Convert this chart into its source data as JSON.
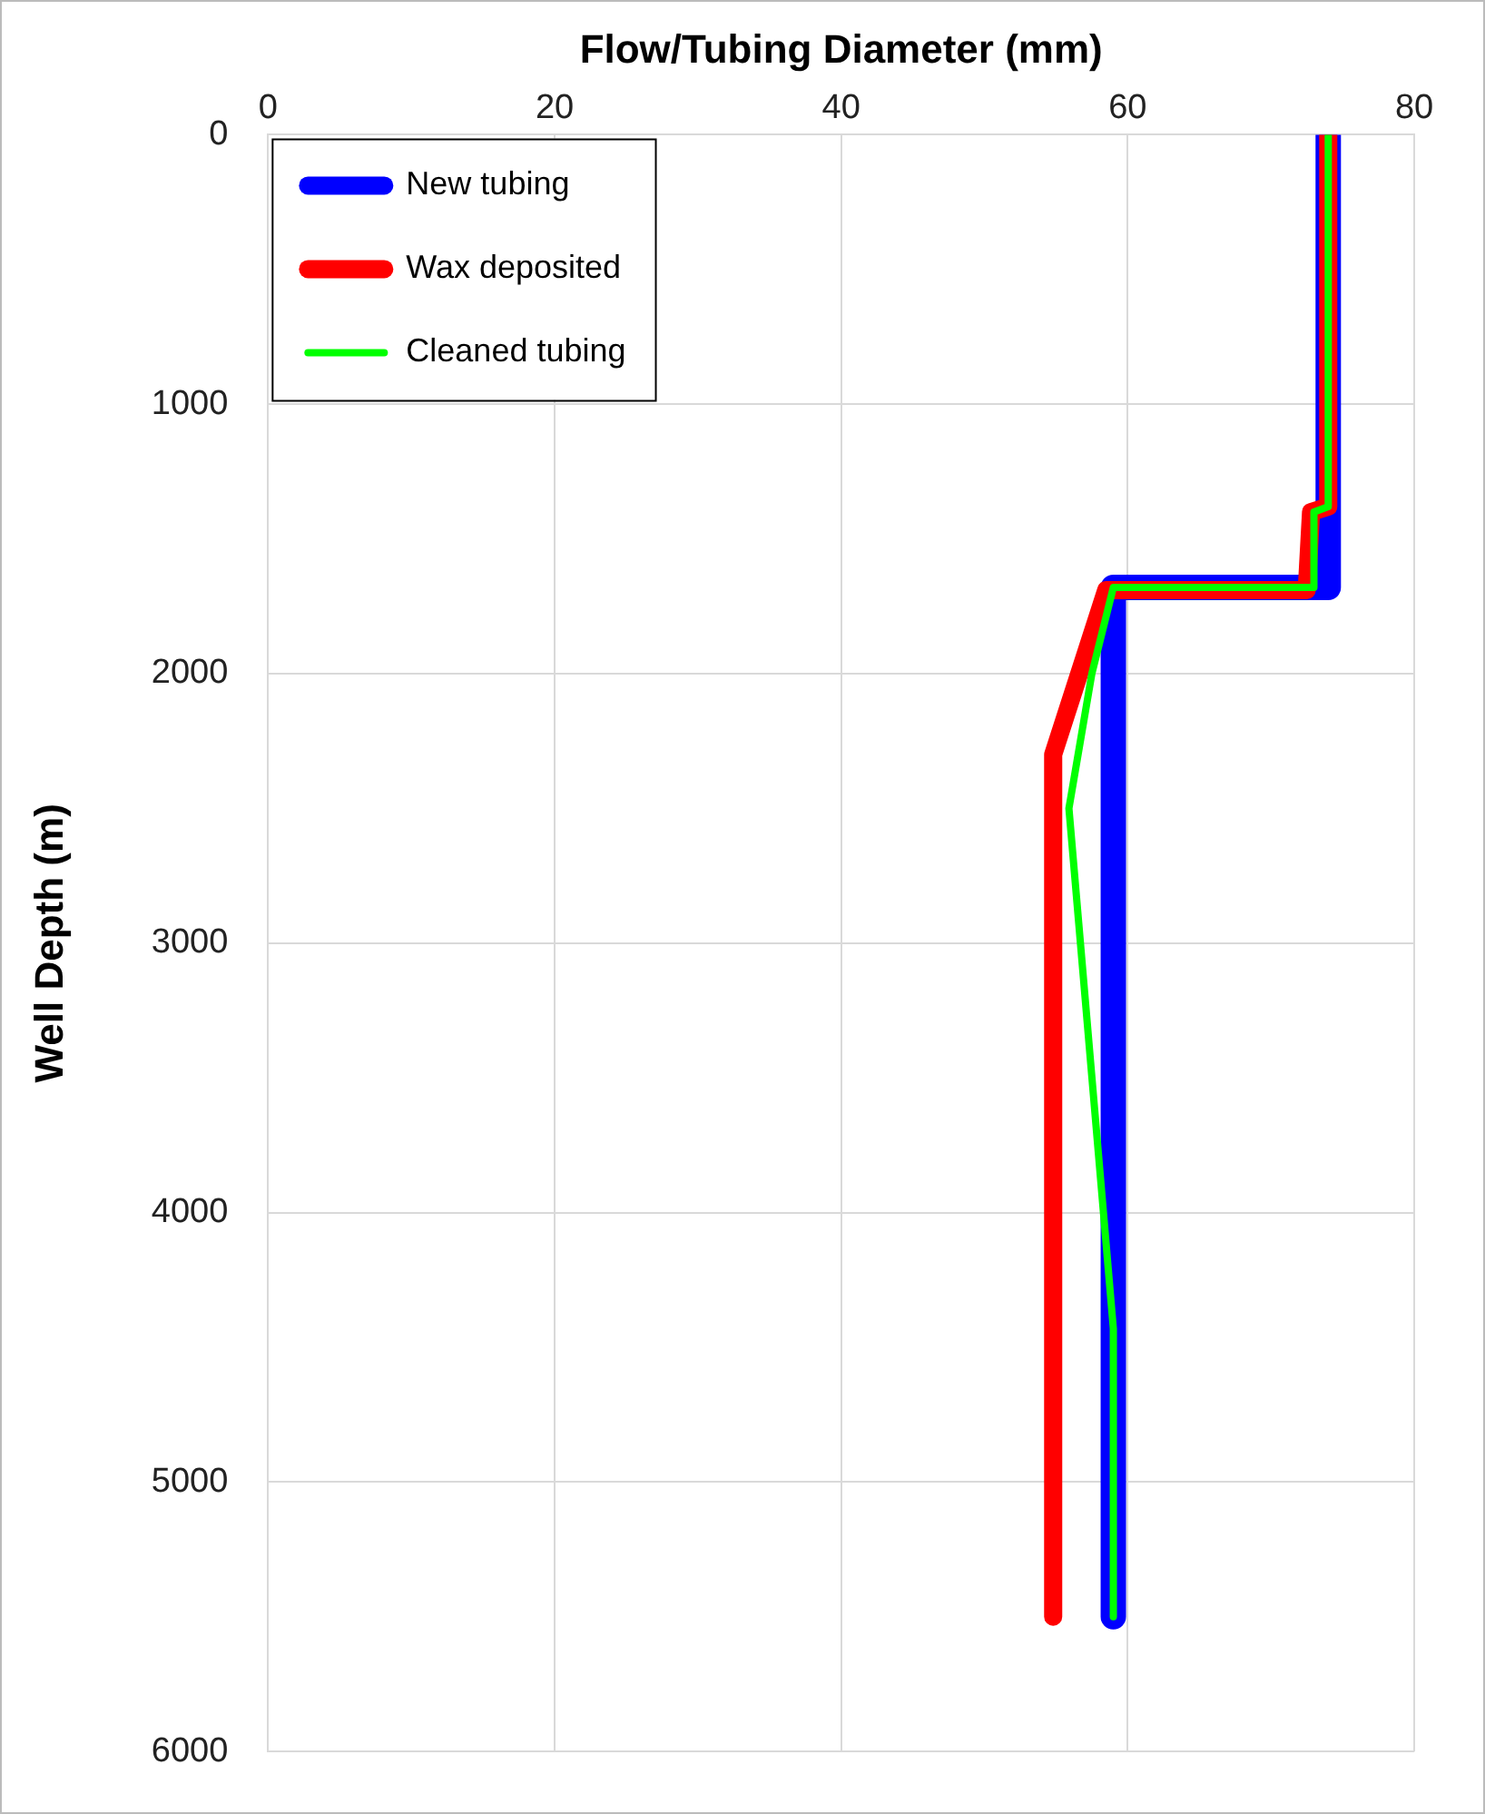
{
  "chart_data": {
    "type": "line",
    "xlabel": "Flow/Tubing Diameter (mm)",
    "ylabel": "Well Depth (m)",
    "xlim": [
      0,
      80
    ],
    "xticks": [
      0,
      20,
      40,
      60,
      80
    ],
    "ylim": [
      6000,
      0
    ],
    "yticks": [
      0,
      1000,
      2000,
      3000,
      4000,
      5000,
      6000
    ],
    "grid": true,
    "legend": "top left",
    "marker": "none",
    "line_style": "solid",
    "series": [
      {
        "name": "New tubing",
        "color": "#0000ff",
        "x": [
          74,
          74,
          59,
          59
        ],
        "values": [
          0,
          1680,
          1680,
          5500
        ]
      },
      {
        "name": "Wax deposited",
        "color": "#ff0000",
        "x": [
          74,
          74,
          72.8,
          72.5,
          58.5,
          54.8,
          54.8
        ],
        "values": [
          0,
          1380,
          1400,
          1690,
          1690,
          2300,
          5500
        ]
      },
      {
        "name": "Cleaned tubing",
        "color": "#00ff00",
        "x": [
          74,
          74,
          73,
          73,
          59,
          57.5,
          55.9,
          59,
          59
        ],
        "values": [
          0,
          1380,
          1400,
          1680,
          1680,
          2000,
          2500,
          4430,
          5500
        ]
      }
    ]
  }
}
